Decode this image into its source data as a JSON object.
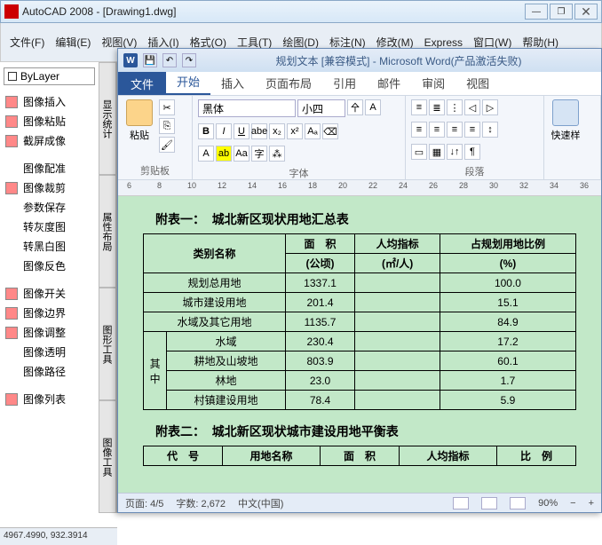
{
  "autocad": {
    "title": "AutoCAD 2008 - [Drawing1.dwg]",
    "menus": [
      "文件(F)",
      "编辑(E)",
      "视图(V)",
      "插入(I)",
      "格式(O)",
      "工具(T)",
      "绘图(D)",
      "标注(N)",
      "修改(M)",
      "Express",
      "窗口(W)",
      "帮助(H)"
    ],
    "layer": "ByLayer",
    "side_items": [
      "图像插入",
      "图像粘贴",
      "截屏成像",
      "图像配准",
      "图像裁剪",
      "参数保存",
      "转灰度图",
      "转黑白图",
      "图像反色",
      "图像开关",
      "图像边界",
      "图像调整",
      "图像透明",
      "图像路径",
      "图像列表"
    ],
    "vtabs": [
      "显示统计",
      "属性布局",
      "图形工具",
      "图像工具"
    ],
    "coords": "4967.4990, 932.3914"
  },
  "word": {
    "title": "规划文本 [兼容模式] - Microsoft Word(产品激活失败)",
    "file_tab": "文件",
    "tabs": [
      "开始",
      "插入",
      "页面布局",
      "引用",
      "邮件",
      "审阅",
      "视图"
    ],
    "active_tab": 0,
    "ribbon": {
      "clipboard": "剪贴板",
      "paste": "粘贴",
      "font_group": "字体",
      "para_group": "段落",
      "style_group": "快速样",
      "font_name": "黑体",
      "font_size": "小四"
    },
    "ruler_marks": [
      "6",
      "8",
      "10",
      "12",
      "14",
      "16",
      "18",
      "20",
      "22",
      "24",
      "26",
      "28",
      "30",
      "32",
      "34",
      "36"
    ],
    "status": {
      "page": "页面: 4/5",
      "words": "字数: 2,672",
      "lang": "中文(中国)",
      "zoom": "90%"
    }
  },
  "doc": {
    "title1_prefix": "附表一：",
    "title1_rest": "城北新区现状用地汇总表",
    "hdr": {
      "col1": "类别名称",
      "col2a": "面　积",
      "col2b": "(公顷)",
      "col3a": "人均指标",
      "col3b": "(㎡/人)",
      "col4a": "占规划用地比例",
      "col4b": "(%)"
    },
    "row1": {
      "name": "规划总用地",
      "area": "1337.1",
      "pct": "100.0"
    },
    "row2": {
      "name": "城市建设用地",
      "area": "201.4",
      "pct": "15.1"
    },
    "row3": {
      "name": "水域及其它用地",
      "area": "1135.7",
      "pct": "84.9"
    },
    "grp": {
      "label1": "其",
      "label2": "中"
    },
    "sub1": {
      "name": "水域",
      "area": "230.4",
      "pct": "17.2"
    },
    "sub2": {
      "name": "耕地及山坡地",
      "area": "803.9",
      "pct": "60.1"
    },
    "sub3": {
      "name": "林地",
      "area": "23.0",
      "pct": "1.7"
    },
    "sub4": {
      "name": "村镇建设用地",
      "area": "78.4",
      "pct": "5.9"
    },
    "title2_prefix": "附表二：",
    "title2_rest": "城北新区现状城市建设用地平衡表",
    "t2": {
      "col1": "代　号",
      "col2": "用地名称",
      "col3": "面　积",
      "col4": "人均指标",
      "col5": "比　例"
    }
  }
}
